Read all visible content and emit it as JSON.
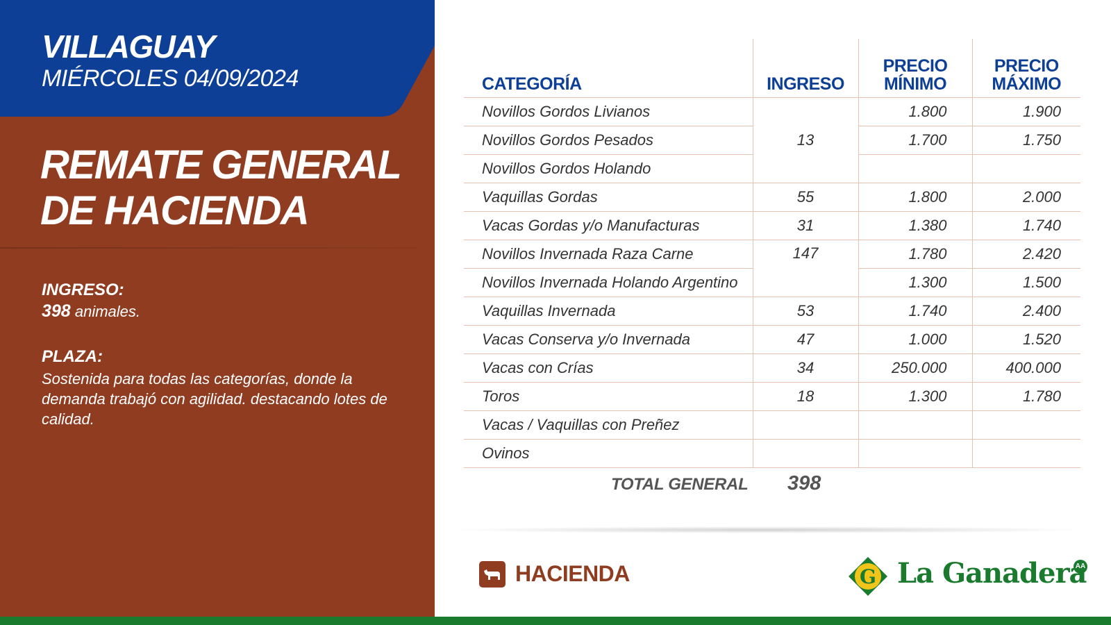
{
  "header": {
    "city": "VILLAGUAY",
    "date": "MIÉRCOLES 04/09/2024"
  },
  "title": {
    "line1": "REMATE GENERAL",
    "line2": "DE HACIENDA"
  },
  "ingreso": {
    "label": "INGRESO:",
    "count": "398",
    "unit": "animales."
  },
  "plaza": {
    "label": "PLAZA:",
    "text": "Sostenida para todas las categorías, donde la demanda trabajó con agilidad. destacando lotes de calidad."
  },
  "table": {
    "headers": {
      "categoria": "CATEGORÍA",
      "ingreso": "INGRESO",
      "precio_min_1": "PRECIO",
      "precio_min_2": "MÍNIMO",
      "precio_max_1": "PRECIO",
      "precio_max_2": "MÁXIMO"
    },
    "rows": [
      {
        "categoria": "Novillos Gordos Livianos",
        "ingreso": "13",
        "min": "1.800",
        "max": "1.900"
      },
      {
        "categoria": "Novillos Gordos Pesados",
        "ingreso": "",
        "min": "1.700",
        "max": "1.750"
      },
      {
        "categoria": "Novillos Gordos Holando",
        "ingreso": "",
        "min": "",
        "max": ""
      },
      {
        "categoria": "Vaquillas Gordas",
        "ingreso": "55",
        "min": "1.800",
        "max": "2.000"
      },
      {
        "categoria": "Vacas Gordas y/o Manufacturas",
        "ingreso": "31",
        "min": "1.380",
        "max": "1.740"
      },
      {
        "categoria": "Novillos Invernada Raza Carne",
        "ingreso": "147",
        "min": "1.780",
        "max": "2.420"
      },
      {
        "categoria": "Novillos Invernada Holando Argentino",
        "ingreso": "",
        "min": "1.300",
        "max": "1.500"
      },
      {
        "categoria": "Vaquillas Invernada",
        "ingreso": "53",
        "min": "1.740",
        "max": "2.400"
      },
      {
        "categoria": "Vacas Conserva y/o Invernada",
        "ingreso": "47",
        "min": "1.000",
        "max": "1.520"
      },
      {
        "categoria": "Vacas con Crías",
        "ingreso": "34",
        "min": "250.000",
        "max": "400.000"
      },
      {
        "categoria": "Toros",
        "ingreso": "18",
        "min": "1.300",
        "max": "1.780"
      },
      {
        "categoria": "Vacas / Vaquillas con Preñez",
        "ingreso": "",
        "min": "",
        "max": ""
      },
      {
        "categoria": "Ovinos",
        "ingreso": "",
        "min": "",
        "max": ""
      }
    ],
    "total_label": "TOTAL GENERAL",
    "total_value": "398"
  },
  "footer": {
    "section": "HACIENDA",
    "brand": "La Ganadera",
    "brand_mark": "G",
    "brand_badge": "AA"
  },
  "colors": {
    "blue": "#0d3f96",
    "brown": "#903c21",
    "green": "#1a7a2e"
  }
}
